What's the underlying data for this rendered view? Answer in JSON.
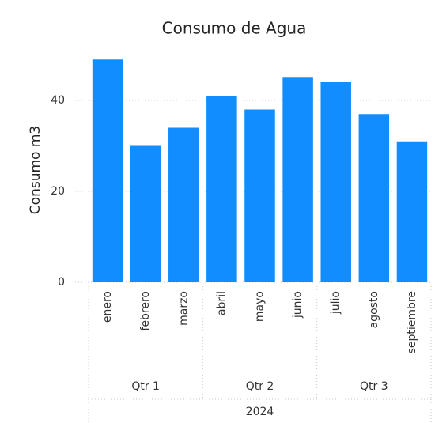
{
  "chart_data": {
    "type": "bar",
    "title": "Consumo de Agua",
    "y_label": "Consumo m3",
    "categories": [
      "enero",
      "febrero",
      "marzo",
      "abril",
      "mayo",
      "junio",
      "julio",
      "agosto",
      "septiembre"
    ],
    "values": [
      49,
      30,
      34,
      41,
      38,
      45,
      44,
      37,
      31
    ],
    "quarters": [
      "Qtr 1",
      "Qtr 2",
      "Qtr 3"
    ],
    "year": "2024",
    "color": "#118dff",
    "ylim": [
      0,
      52
    ],
    "yticks": [
      0,
      20,
      40
    ],
    "grid": true
  }
}
